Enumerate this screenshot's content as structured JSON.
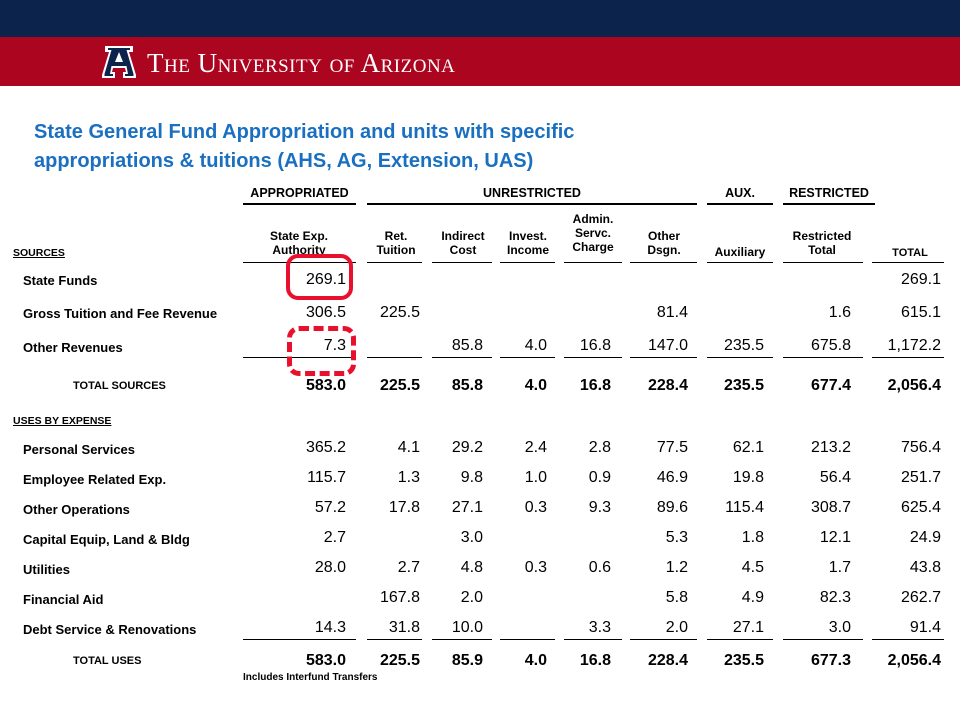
{
  "header": {
    "university_name": "The University of Arizona",
    "navy": "#0c234b",
    "red": "#ab0520"
  },
  "slide": {
    "title_line1": "State General Fund Appropriation and units with specific",
    "title_line2": "appropriations & tuitions (AHS, AG, Extension, UAS)",
    "title_color": "#1a6fc0"
  },
  "table": {
    "groups": {
      "appropriated": "APPROPRIATED",
      "unrestricted": "UNRESTRICTED",
      "aux": "AUX.",
      "restricted": "RESTRICTED"
    },
    "columns": [
      "State Exp. Authority",
      "Ret. Tuition",
      "Indirect Cost",
      "Invest. Income",
      "Admin. Servc. Charge",
      "Other Dsgn.",
      "Auxiliary",
      "Restricted Total",
      "TOTAL"
    ],
    "sources_label": "SOURCES",
    "uses_label": "USES BY EXPENSE",
    "sources_rows": [
      {
        "label": "State Funds",
        "values": [
          "269.1",
          "",
          "",
          "",
          "",
          "",
          "",
          "",
          "269.1"
        ]
      },
      {
        "label": "Gross Tuition and Fee Revenue",
        "values": [
          "306.5",
          "225.5",
          "",
          "",
          "",
          "81.4",
          "",
          "1.6",
          "615.1"
        ]
      },
      {
        "label": "Other Revenues",
        "values": [
          "7.3",
          "",
          "85.8",
          "4.0",
          "16.8",
          "147.0",
          "235.5",
          "675.8",
          "1,172.2"
        ]
      }
    ],
    "total_sources": {
      "label": "TOTAL SOURCES",
      "values": [
        "583.0",
        "225.5",
        "85.8",
        "4.0",
        "16.8",
        "228.4",
        "235.5",
        "677.4",
        "2,056.4"
      ]
    },
    "uses_rows": [
      {
        "label": "Personal Services",
        "values": [
          "365.2",
          "4.1",
          "29.2",
          "2.4",
          "2.8",
          "77.5",
          "62.1",
          "213.2",
          "756.4"
        ]
      },
      {
        "label": "Employee Related Exp.",
        "values": [
          "115.7",
          "1.3",
          "9.8",
          "1.0",
          "0.9",
          "46.9",
          "19.8",
          "56.4",
          "251.7"
        ]
      },
      {
        "label": "Other Operations",
        "values": [
          "57.2",
          "17.8",
          "27.1",
          "0.3",
          "9.3",
          "89.6",
          "115.4",
          "308.7",
          "625.4"
        ]
      },
      {
        "label": "Capital Equip, Land & Bldg",
        "values": [
          "2.7",
          "",
          "3.0",
          "",
          "",
          "5.3",
          "1.8",
          "12.1",
          "24.9"
        ]
      },
      {
        "label": "Utilities",
        "values": [
          "28.0",
          "2.7",
          "4.8",
          "0.3",
          "0.6",
          "1.2",
          "4.5",
          "1.7",
          "43.8"
        ]
      },
      {
        "label": "Financial Aid",
        "values": [
          "",
          "167.8",
          "2.0",
          "",
          "",
          "5.8",
          "4.9",
          "82.3",
          "262.7"
        ]
      },
      {
        "label": "Debt Service & Renovations",
        "values": [
          "14.3",
          "31.8",
          "10.0",
          "",
          "3.3",
          "2.0",
          "27.1",
          "3.0",
          "91.4"
        ]
      }
    ],
    "total_uses": {
      "label": "TOTAL USES",
      "values": [
        "583.0",
        "225.5",
        "85.9",
        "4.0",
        "16.8",
        "228.4",
        "235.5",
        "677.3",
        "2,056.4"
      ]
    },
    "footnote": "Includes Interfund Transfers"
  },
  "highlight_color": "#e8102c"
}
